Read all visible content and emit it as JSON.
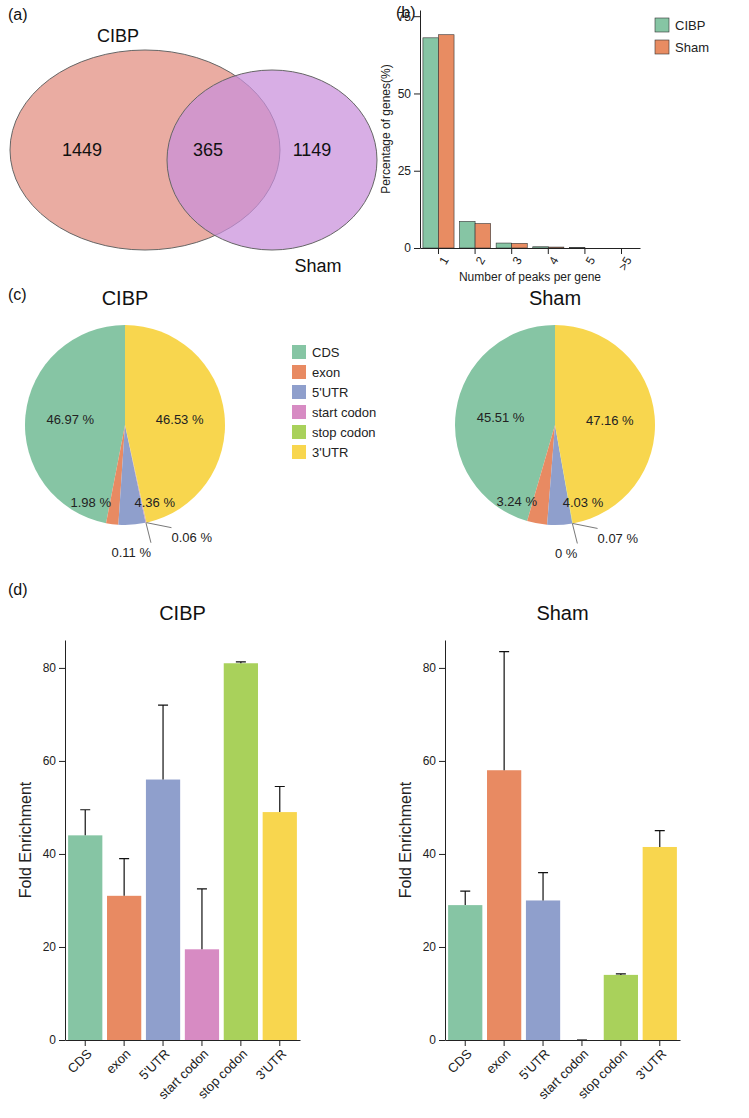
{
  "chart_data": [
    {
      "type": "venn",
      "annotations": [
        "(a)"
      ],
      "sets": [
        {
          "name": "CIBP",
          "color": "#e9a89d"
        },
        {
          "name": "Sham",
          "color": "#c98fdb"
        }
      ],
      "values": [
        1449,
        365,
        1149
      ]
    },
    {
      "type": "bar",
      "annotations": [
        "(b)"
      ],
      "categories": [
        "1",
        "2",
        "3",
        "4",
        "5",
        ">5"
      ],
      "series": [
        {
          "name": "CIBP",
          "color": "#86c5a4",
          "values": [
            68,
            8.6,
            1.6,
            0.4,
            0.1,
            0
          ]
        },
        {
          "name": "Sham",
          "color": "#e88c62",
          "values": [
            69,
            7.9,
            1.5,
            0.3,
            0,
            0
          ]
        }
      ],
      "x_label": "Number of peaks per gene",
      "y_label": "Percentage of genes(%)",
      "ylim": [
        0,
        77
      ],
      "yticks": [
        0,
        25,
        50,
        75
      ],
      "legend": "top-right"
    },
    {
      "type": "pie",
      "annotations": [
        "(c)"
      ],
      "categories": [
        "CDS",
        "exon",
        "5'UTR",
        "start codon",
        "stop codon",
        "3'UTR"
      ],
      "colors": [
        "#86c5a4",
        "#e88a62",
        "#8f9fcc",
        "#d78bc3",
        "#a9d15b",
        "#f8d64e"
      ],
      "series": [
        {
          "name": "CIBP",
          "values": [
            46.97,
            1.98,
            4.36,
            0.11,
            0.06,
            46.53
          ],
          "value_labels": [
            "46.97 %",
            "1.98 %",
            "4.36 %",
            "0.11 %",
            "0.06 %",
            "46.53 %"
          ]
        },
        {
          "name": "Sham",
          "values": [
            45.51,
            3.24,
            4.03,
            0,
            0.07,
            47.16
          ],
          "value_labels": [
            "45.51 %",
            "3.24 %",
            "4.03 %",
            "0 %",
            "0.07 %",
            "47.16 %"
          ]
        }
      ],
      "data_labels": true,
      "legend": "right"
    },
    {
      "type": "bar",
      "annotations": [
        "(d)"
      ],
      "categories": [
        "CDS",
        "exon",
        "5'UTR",
        "start codon",
        "stop codon",
        "3'UTR"
      ],
      "colors": [
        "#86c5a4",
        "#e88a62",
        "#8f9fcc",
        "#d78bc3",
        "#a9d15b",
        "#f8d64e"
      ],
      "series": [
        {
          "name": "CIBP",
          "values": [
            44,
            31,
            56,
            19.5,
            81,
            49
          ],
          "errors": [
            5.5,
            8,
            16,
            13,
            0.3,
            5.5
          ]
        },
        {
          "name": "Sham",
          "values": [
            29,
            58,
            30,
            0,
            14,
            41.5
          ],
          "errors": [
            3,
            25.5,
            6,
            0,
            0.2,
            3.5
          ]
        }
      ],
      "y_label": "Fold Enrichment",
      "ylim": [
        0,
        86
      ],
      "yticks": [
        0,
        20,
        40,
        60,
        80
      ]
    }
  ]
}
